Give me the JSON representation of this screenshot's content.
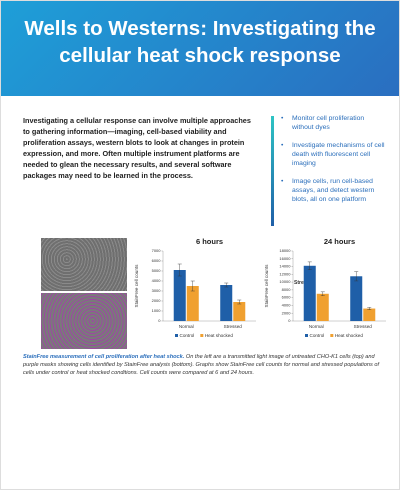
{
  "header": {
    "title": "Wells to Westerns: Investigating the cellular heat shock response"
  },
  "intro": "Investigating a cellular response can involve multiple approaches to gathering information—imaging, cell-based viability and proliferation assays, western blots to look at changes in protein expression, and more. Often multiple instrument platforms are needed to glean the necessary results, and several software packages may need to be learned in the process.",
  "bullets": [
    "Monitor cell proliferation without dyes",
    "Investigate mechanisms of cell death with fluorescent cell imaging",
    "Image cells, run cell-based assays, and detect western blots, all on one platform"
  ],
  "chart_data": [
    {
      "type": "bar",
      "title": "6 hours",
      "y_label": "StainFree cell counts",
      "categories": [
        "Normal",
        "Stressed"
      ],
      "series": [
        {
          "name": "Control",
          "color": "#1f5fa8",
          "values": [
            5100,
            3600
          ],
          "errors": [
            600,
            200
          ]
        },
        {
          "name": "Heat shocked",
          "color": "#f0a030",
          "values": [
            3500,
            1900
          ],
          "errors": [
            500,
            200
          ]
        }
      ],
      "ylim": [
        0,
        7000
      ],
      "yticks": [
        0,
        1000,
        2000,
        3000,
        4000,
        5000,
        6000,
        7000
      ]
    },
    {
      "type": "bar",
      "title": "24 hours",
      "y_label": "StainFree cell counts",
      "annotation": "Stressed",
      "categories": [
        "Normal",
        "Stressed"
      ],
      "series": [
        {
          "name": "Control",
          "color": "#1f5fa8",
          "values": [
            14200,
            11500
          ],
          "errors": [
            1000,
            1200
          ]
        },
        {
          "name": "Heat shocked",
          "color": "#f0a030",
          "values": [
            7000,
            3200
          ],
          "errors": [
            500,
            300
          ]
        }
      ],
      "ylim": [
        0,
        18000
      ],
      "yticks": [
        0,
        2000,
        4000,
        6000,
        8000,
        10000,
        12000,
        14000,
        16000,
        18000
      ]
    }
  ],
  "caption": {
    "lead": "StainFree measurement of cell proliferation after heat shock.",
    "text": "On the left are a transmitted light image of untreated CHO-K1 cells (top) and purple masks showing cells identified by StainFree analysis (bottom). Graphs show StainFree cell counts for normal and stressed populations of cells under control or heat shocked conditions. Cell counts were compared at 6 and 24 hours."
  }
}
